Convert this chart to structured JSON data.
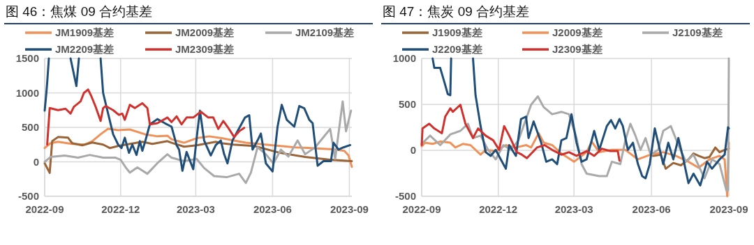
{
  "chart_data": [
    {
      "type": "line",
      "title": "图 46：焦煤 09 合约基差",
      "legend": "top",
      "grid": true,
      "line_style": "solid",
      "marker": "none",
      "xlim": [
        "2022-09-01",
        "2023-09-04"
      ],
      "xticks": [
        "2022-09",
        "2022-12",
        "2023-03",
        "2023-06",
        "2023-09"
      ],
      "ylim": [
        -500,
        1500
      ],
      "yticks": [
        -500,
        0,
        500,
        1000,
        1500
      ],
      "series": [
        {
          "name": "JM1909基差",
          "color": "#f0915a",
          "x": [
            "2022-09-01",
            "2022-09-08",
            "2022-09-17",
            "2022-10-04",
            "2022-10-19",
            "2022-10-28",
            "2022-11-07",
            "2022-11-16",
            "2022-11-28",
            "2022-12-12",
            "2022-12-30",
            "2023-01-14",
            "2023-01-26",
            "2023-01-31",
            "2023-02-15",
            "2023-03-02",
            "2023-03-17",
            "2023-04-01",
            "2023-04-15",
            "2023-04-30",
            "2023-05-15",
            "2023-05-30",
            "2023-06-13",
            "2023-06-28",
            "2023-07-13",
            "2023-07-28",
            "2023-08-12",
            "2023-08-26",
            "2023-08-31",
            "2023-09-04"
          ],
          "values": [
            200,
            270,
            290,
            260,
            250,
            300,
            400,
            480,
            460,
            470,
            400,
            370,
            380,
            327,
            277,
            343,
            370,
            343,
            310,
            277,
            260,
            243,
            227,
            210,
            203,
            193,
            183,
            160,
            93,
            -73
          ]
        },
        {
          "name": "JM2009基差",
          "color": "#9a6436",
          "x": [
            "2022-09-01",
            "2022-09-07",
            "2022-09-10",
            "2022-09-17",
            "2022-09-29",
            "2022-10-04",
            "2022-10-16",
            "2022-10-28",
            "2022-11-10",
            "2022-11-18",
            "2022-11-28",
            "2022-12-12",
            "2022-12-27",
            "2023-01-08",
            "2023-01-26",
            "2023-01-31",
            "2023-02-15",
            "2023-03-02",
            "2023-03-25",
            "2023-04-01",
            "2023-04-15",
            "2023-05-10",
            "2023-06-10",
            "2023-07-10",
            "2023-08-09",
            "2023-09-04"
          ],
          "values": [
            -20,
            -160,
            300,
            360,
            350,
            270,
            240,
            280,
            250,
            200,
            230,
            260,
            290,
            260,
            300,
            277,
            220,
            240,
            290,
            270,
            250,
            230,
            130,
            70,
            30,
            10
          ]
        },
        {
          "name": "JM2109基差",
          "color": "#a9a9a9",
          "x": [
            "2022-09-01",
            "2022-09-08",
            "2022-09-25",
            "2022-10-11",
            "2022-10-25",
            "2022-11-10",
            "2022-11-25",
            "2022-12-01",
            "2022-12-07",
            "2022-12-12",
            "2022-12-21",
            "2023-01-02",
            "2023-01-14",
            "2023-01-26",
            "2023-01-31",
            "2023-02-15",
            "2023-03-02",
            "2023-03-11",
            "2023-03-23",
            "2023-04-07",
            "2023-04-22",
            "2023-04-30",
            "2023-05-06",
            "2023-05-14",
            "2023-05-24",
            "2023-06-02",
            "2023-06-11",
            "2023-06-20",
            "2023-07-01",
            "2023-07-10",
            "2023-07-22",
            "2023-07-31",
            "2023-08-09",
            "2023-08-15",
            "2023-08-24",
            "2023-08-28",
            "2023-09-03"
          ],
          "values": [
            0,
            70,
            90,
            60,
            100,
            60,
            60,
            30,
            -80,
            -157,
            -80,
            -173,
            -20,
            110,
            60,
            10,
            43,
            -90,
            -207,
            -223,
            -173,
            -307,
            -157,
            210,
            110,
            -23,
            177,
            77,
            310,
            110,
            210,
            343,
            477,
            43,
            877,
            443,
            743
          ]
        },
        {
          "name": "JM2209基差",
          "color": "#1f4e79",
          "x": [
            "2022-09-01",
            "2022-09-03",
            "2022-09-04",
            "2022-09-06",
            "2022-10-02",
            "2022-10-09",
            "2022-10-12",
            "2022-11-07",
            "2022-11-10",
            "2022-11-14",
            "2022-11-22",
            "2022-11-28",
            "2022-12-02",
            "2022-12-06",
            "2022-12-11",
            "2022-12-15",
            "2022-12-20",
            "2022-12-24",
            "2022-12-27",
            "2022-12-30",
            "2023-01-05",
            "2023-01-14",
            "2023-01-23",
            "2023-01-31",
            "2023-02-06",
            "2023-02-09",
            "2023-02-13",
            "2023-02-18",
            "2023-02-26",
            "2023-03-03",
            "2023-03-06",
            "2023-03-11",
            "2023-03-19",
            "2023-03-25",
            "2023-03-31",
            "2023-04-04",
            "2023-04-08",
            "2023-04-14",
            "2023-04-23",
            "2023-04-29",
            "2023-05-04",
            "2023-05-08",
            "2023-05-14",
            "2023-05-18",
            "2023-05-24",
            "2023-06-01",
            "2023-06-07",
            "2023-06-12",
            "2023-06-18",
            "2023-06-27",
            "2023-07-03",
            "2023-07-09",
            "2023-07-15",
            "2023-07-19",
            "2023-07-25",
            "2023-08-01",
            "2023-08-10",
            "2023-08-13",
            "2023-08-19",
            "2023-08-25",
            "2023-09-02"
          ],
          "values": [
            743,
            1000,
            1150,
            1500,
            1500,
            1100,
            1500,
            1500,
            1000,
            800,
            400,
            250,
            200,
            350,
            130,
            250,
            100,
            300,
            160,
            280,
            543,
            620,
            560,
            510,
            243,
            177,
            -130,
            143,
            -107,
            443,
            743,
            310,
            93,
            243,
            310,
            110,
            -23,
            310,
            510,
            643,
            677,
            177,
            310,
            410,
            -23,
            -140,
            510,
            827,
            610,
            510,
            810,
            777,
            610,
            560,
            -57,
            10,
            10,
            277,
            177,
            210,
            243
          ]
        },
        {
          "name": "JM2309基差",
          "color": "#d0312d",
          "x": [
            "2022-09-04",
            "2022-09-07",
            "2022-09-17",
            "2022-09-26",
            "2022-10-02",
            "2022-10-06",
            "2022-10-14",
            "2022-10-18",
            "2022-10-23",
            "2022-10-27",
            "2022-11-01",
            "2022-11-07",
            "2022-11-10",
            "2022-11-13",
            "2022-11-22",
            "2022-11-29",
            "2022-12-03",
            "2022-12-06",
            "2022-12-12",
            "2022-12-18",
            "2022-12-27",
            "2023-01-02",
            "2023-01-05",
            "2023-01-14",
            "2023-01-26",
            "2023-01-31",
            "2023-02-06",
            "2023-02-12",
            "2023-02-18",
            "2023-02-26",
            "2023-03-07",
            "2023-03-16",
            "2023-03-22",
            "2023-03-28",
            "2023-04-03",
            "2023-04-08",
            "2023-04-16",
            "2023-04-22",
            "2023-04-28"
          ],
          "values": [
            250,
            780,
            750,
            770,
            700,
            800,
            877,
            1000,
            1050,
            950,
            800,
            593,
            780,
            810,
            750,
            680,
            700,
            610,
            827,
            780,
            850,
            780,
            543,
            560,
            643,
            577,
            660,
            543,
            643,
            643,
            727,
            643,
            643,
            477,
            593,
            510,
            360,
            443,
            493
          ]
        }
      ]
    },
    {
      "type": "line",
      "title": "图 47：焦炭 09 合约基差",
      "legend": "top",
      "grid": true,
      "line_style": "solid",
      "marker": "none",
      "xlim": [
        "2022-09-01",
        "2023-09-01"
      ],
      "xticks": [
        "2022-09",
        "2022-12",
        "2023-03",
        "2023-06",
        "2023-09"
      ],
      "ylim": [
        -500,
        1000
      ],
      "yticks": [
        -500,
        0,
        500,
        1000
      ],
      "series": [
        {
          "name": "J1909基差",
          "color": "#9a6436",
          "x": [
            "2023-06-03",
            "2023-06-12",
            "2023-06-18",
            "2023-06-27",
            "2023-07-06",
            "2023-07-15",
            "2023-07-21",
            "2023-07-27",
            "2023-08-03",
            "2023-08-09",
            "2023-08-16",
            "2023-08-21",
            "2023-08-27",
            "2023-09-01"
          ],
          "values": [
            -60,
            -47,
            -200,
            -137,
            -163,
            -98,
            -34,
            -60,
            -85,
            -72,
            31,
            -20,
            5,
            18
          ]
        },
        {
          "name": "J2009基差",
          "color": "#f0915a",
          "x": [
            "2022-09-01",
            "2022-09-05",
            "2022-09-14",
            "2022-09-23",
            "2022-10-05",
            "2022-10-11",
            "2022-10-20",
            "2022-10-29",
            "2022-11-10",
            "2022-11-16",
            "2022-11-28",
            "2022-12-10",
            "2022-12-22",
            "2023-01-03",
            "2023-01-09",
            "2023-01-18",
            "2023-01-24",
            "2023-02-03",
            "2023-02-14",
            "2023-03-01",
            "2023-03-16",
            "2023-03-22",
            "2023-03-31",
            "2023-04-15",
            "2023-05-01",
            "2023-05-16",
            "2023-05-31",
            "2023-06-15",
            "2023-06-30",
            "2023-07-15",
            "2023-07-27",
            "2023-08-09",
            "2023-08-21",
            "2023-08-27",
            "2023-08-30",
            "2023-09-01"
          ],
          "values": [
            44,
            83,
            70,
            96,
            83,
            31,
            70,
            57,
            -47,
            5,
            -8,
            57,
            31,
            57,
            31,
            186,
            83,
            57,
            -34,
            -124,
            -20,
            96,
            -20,
            5,
            5,
            -98,
            -47,
            -20,
            -60,
            -124,
            -189,
            -98,
            -60,
            -98,
            -500,
            83
          ]
        },
        {
          "name": "J2109基差",
          "color": "#a9a9a9",
          "x": [
            "2022-09-01",
            "2022-09-11",
            "2022-09-23",
            "2022-10-05",
            "2022-10-17",
            "2022-10-26",
            "2022-11-01",
            "2022-11-10",
            "2022-11-19",
            "2022-11-28",
            "2022-12-07",
            "2022-12-16",
            "2022-12-25",
            "2023-01-03",
            "2023-01-09",
            "2023-01-17",
            "2023-01-24",
            "2023-02-03",
            "2023-02-14",
            "2023-02-23",
            "2023-03-04",
            "2023-03-10",
            "2023-03-16",
            "2023-03-31",
            "2023-04-09",
            "2023-04-15",
            "2023-04-25",
            "2023-05-01",
            "2023-05-07",
            "2023-05-13",
            "2023-05-19",
            "2023-05-25",
            "2023-05-31",
            "2023-06-09",
            "2023-06-15",
            "2023-06-24",
            "2023-07-03",
            "2023-07-12",
            "2023-07-21",
            "2023-08-03",
            "2023-08-12",
            "2023-08-21",
            "2023-08-29",
            "2023-08-31",
            "2023-09-01"
          ],
          "values": [
            70,
            160,
            57,
            173,
            212,
            289,
            134,
            160,
            5,
            -98,
            57,
            5,
            109,
            341,
            496,
            587,
            470,
            393,
            419,
            393,
            134,
            -150,
            -254,
            -280,
            -280,
            -124,
            -150,
            109,
            289,
            160,
            5,
            134,
            -47,
            5,
            212,
            264,
            57,
            -124,
            -47,
            -305,
            -98,
            -150,
            -434,
            -434,
            1000
          ]
        },
        {
          "name": "J2209基差",
          "color": "#1f4e79",
          "x": [
            "2022-09-14",
            "2022-09-16",
            "2022-09-23",
            "2022-09-28",
            "2022-10-02",
            "2022-10-05",
            "2022-10-06",
            "2022-11-01",
            "2022-11-04",
            "2022-11-10",
            "2022-11-16",
            "2022-11-22",
            "2022-11-28",
            "2022-12-04",
            "2022-12-10",
            "2022-12-14",
            "2022-12-22",
            "2022-12-28",
            "2023-01-03",
            "2023-01-06",
            "2023-01-12",
            "2023-01-21",
            "2023-01-27",
            "2023-02-03",
            "2023-02-09",
            "2023-02-14",
            "2023-02-20",
            "2023-02-26",
            "2023-03-04",
            "2023-03-10",
            "2023-03-16",
            "2023-03-25",
            "2023-03-31",
            "2023-04-09",
            "2023-04-14",
            "2023-04-19",
            "2023-04-24",
            "2023-04-28",
            "2023-05-04",
            "2023-05-10",
            "2023-05-16",
            "2023-05-21",
            "2023-05-25",
            "2023-05-30",
            "2023-06-05",
            "2023-06-09",
            "2023-06-15",
            "2023-06-21",
            "2023-06-27",
            "2023-07-03",
            "2023-07-09",
            "2023-07-15",
            "2023-07-21",
            "2023-07-29",
            "2023-08-06",
            "2023-08-12",
            "2023-08-21",
            "2023-08-27",
            "2023-08-31",
            "2023-09-01"
          ],
          "values": [
            1000,
            897,
            897,
            742,
            612,
            600,
            1000,
            1000,
            600,
            264,
            -20,
            -60,
            5,
            -98,
            -200,
            57,
            -60,
            341,
            367,
            134,
            315,
            83,
            -124,
            -98,
            -150,
            109,
            134,
            393,
            83,
            -124,
            -98,
            212,
            5,
            264,
            329,
            238,
            341,
            264,
            5,
            83,
            -150,
            -280,
            -305,
            -150,
            238,
            83,
            -150,
            83,
            -98,
            134,
            -98,
            -357,
            -254,
            -382,
            -124,
            -200,
            -98,
            -47,
            251,
            238
          ]
        },
        {
          "name": "J2309基差",
          "color": "#d0312d",
          "x": [
            "2022-09-01",
            "2022-09-02",
            "2022-09-10",
            "2022-09-16",
            "2022-09-25",
            "2022-09-29",
            "2022-10-05",
            "2022-10-08",
            "2022-10-17",
            "2022-10-23",
            "2022-11-01",
            "2022-11-07",
            "2022-11-16",
            "2022-11-25",
            "2022-12-02",
            "2022-12-08",
            "2022-12-14",
            "2022-12-23",
            "2022-12-29",
            "2023-01-04",
            "2023-01-16",
            "2023-01-25",
            "2023-02-03",
            "2023-02-14",
            "2023-02-23",
            "2023-03-04",
            "2023-03-16",
            "2023-03-25",
            "2023-04-03",
            "2023-04-13",
            "2023-04-22",
            "2023-04-24"
          ],
          "values": [
            57,
            238,
            289,
            238,
            186,
            367,
            457,
            419,
            496,
            289,
            134,
            238,
            160,
            109,
            5,
            264,
            160,
            -20,
            -47,
            -85,
            31,
            57,
            5,
            -47,
            -20,
            -60,
            -8,
            -60,
            18,
            -8,
            -8,
            -111
          ]
        }
      ]
    }
  ]
}
